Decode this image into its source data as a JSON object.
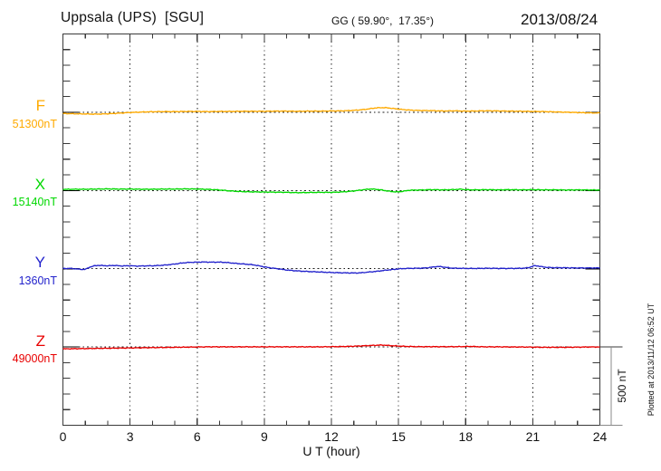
{
  "chart_data": {
    "type": "line",
    "title": "Uppsala (UPS)  [SGU]",
    "subtitle": "GG ( 59.90°,  17.35°)",
    "date": "2013/08/24",
    "xlabel": "U T (hour)",
    "xlim": [
      0,
      24
    ],
    "x_ticks": [
      0,
      3,
      6,
      9,
      12,
      15,
      18,
      21,
      24
    ],
    "x_minor_step_hours": 1,
    "grid": "dotted vertical lines at 3-hour ticks",
    "y_minor_tick_nT": 100,
    "scalebar": {
      "label": "500 nT",
      "nT": 500
    },
    "plotted_at": "Plotted at 2013/11/12 06:52 UT",
    "series": [
      {
        "name": "F",
        "baseline_label": "51300nT",
        "baseline_nT": 51300,
        "color": "#ffaa00",
        "points": [
          [
            0,
            -8
          ],
          [
            0.5,
            -10
          ],
          [
            1,
            -11
          ],
          [
            1.5,
            -12
          ],
          [
            2,
            -10
          ],
          [
            2.5,
            -6
          ],
          [
            3,
            -2
          ],
          [
            3.5,
            1
          ],
          [
            4,
            3
          ],
          [
            4.5,
            4
          ],
          [
            5,
            4
          ],
          [
            5.5,
            5
          ],
          [
            6,
            5
          ],
          [
            6.5,
            4
          ],
          [
            7,
            5
          ],
          [
            7.5,
            5
          ],
          [
            8,
            6
          ],
          [
            8.5,
            6
          ],
          [
            9,
            6
          ],
          [
            9.5,
            7
          ],
          [
            10,
            7
          ],
          [
            10.5,
            6
          ],
          [
            11,
            7
          ],
          [
            11.5,
            7
          ],
          [
            12,
            8
          ],
          [
            12.5,
            9
          ],
          [
            13,
            12
          ],
          [
            13.5,
            18
          ],
          [
            13.9,
            26
          ],
          [
            14.2,
            29
          ],
          [
            14.5,
            28
          ],
          [
            14.8,
            23
          ],
          [
            15.2,
            17
          ],
          [
            15.6,
            13
          ],
          [
            16,
            11
          ],
          [
            16.5,
            10
          ],
          [
            17,
            8
          ],
          [
            17.5,
            9
          ],
          [
            18,
            7
          ],
          [
            18.5,
            8
          ],
          [
            19,
            9
          ],
          [
            19.5,
            8
          ],
          [
            20,
            7
          ],
          [
            20.5,
            6
          ],
          [
            21,
            5
          ],
          [
            21.5,
            4
          ],
          [
            22,
            2
          ],
          [
            22.5,
            0
          ],
          [
            23,
            -2
          ],
          [
            23.5,
            -4
          ],
          [
            24,
            -5
          ]
        ]
      },
      {
        "name": "X",
        "baseline_label": "15140nT",
        "baseline_nT": 15140,
        "color": "#00d800",
        "points": [
          [
            0,
            7
          ],
          [
            0.5,
            8
          ],
          [
            1,
            8
          ],
          [
            1.5,
            9
          ],
          [
            2,
            10
          ],
          [
            2.5,
            9
          ],
          [
            3,
            9
          ],
          [
            3.5,
            8
          ],
          [
            4,
            8
          ],
          [
            4.5,
            9
          ],
          [
            5,
            9
          ],
          [
            5.5,
            10
          ],
          [
            6,
            9
          ],
          [
            6.5,
            7
          ],
          [
            7,
            3
          ],
          [
            7.5,
            -3
          ],
          [
            8,
            -7
          ],
          [
            8.5,
            -9
          ],
          [
            9,
            -10
          ],
          [
            9.5,
            -11
          ],
          [
            10,
            -12
          ],
          [
            10.5,
            -14
          ],
          [
            11,
            -13
          ],
          [
            11.5,
            -12
          ],
          [
            12,
            -12
          ],
          [
            12.5,
            -9
          ],
          [
            13,
            -3
          ],
          [
            13.5,
            6
          ],
          [
            13.8,
            9
          ],
          [
            14.2,
            4
          ],
          [
            14.5,
            -3
          ],
          [
            14.9,
            -9
          ],
          [
            15.2,
            -5
          ],
          [
            15.5,
            1
          ],
          [
            16,
            3
          ],
          [
            16.5,
            5
          ],
          [
            17,
            4
          ],
          [
            17.5,
            6
          ],
          [
            17.8,
            8
          ],
          [
            18,
            5
          ],
          [
            18.5,
            4
          ],
          [
            19,
            5
          ],
          [
            19.5,
            4
          ],
          [
            20,
            5
          ],
          [
            20.5,
            4
          ],
          [
            21,
            5
          ],
          [
            21.5,
            4
          ],
          [
            22,
            4
          ],
          [
            22.5,
            3
          ],
          [
            23,
            4
          ],
          [
            23.5,
            3
          ],
          [
            24,
            3
          ]
        ]
      },
      {
        "name": "Y",
        "baseline_label": "1360nT",
        "baseline_nT": 1360,
        "color": "#2222cc",
        "points": [
          [
            0,
            1
          ],
          [
            0.3,
            2
          ],
          [
            0.6,
            -1
          ],
          [
            0.8,
            -4
          ],
          [
            1,
            -3
          ],
          [
            1.2,
            10
          ],
          [
            1.4,
            18
          ],
          [
            1.6,
            21
          ],
          [
            2,
            19
          ],
          [
            2.3,
            21
          ],
          [
            2.6,
            18
          ],
          [
            3,
            19
          ],
          [
            3.3,
            17
          ],
          [
            3.6,
            18
          ],
          [
            4,
            19
          ],
          [
            4.3,
            21
          ],
          [
            4.6,
            24
          ],
          [
            5,
            30
          ],
          [
            5.3,
            36
          ],
          [
            5.6,
            40
          ],
          [
            6,
            42
          ],
          [
            6.3,
            43
          ],
          [
            6.6,
            42
          ],
          [
            7,
            42
          ],
          [
            7.3,
            40
          ],
          [
            7.6,
            36
          ],
          [
            8,
            31
          ],
          [
            8.5,
            25
          ],
          [
            9,
            12
          ],
          [
            9.3,
            5
          ],
          [
            9.6,
            0
          ],
          [
            10,
            -8
          ],
          [
            10.5,
            -14
          ],
          [
            11,
            -18
          ],
          [
            11.5,
            -21
          ],
          [
            12,
            -24
          ],
          [
            12.5,
            -26
          ],
          [
            13,
            -27
          ],
          [
            13.3,
            -26
          ],
          [
            13.6,
            -22
          ],
          [
            14,
            -17
          ],
          [
            14.4,
            -10
          ],
          [
            14.8,
            -4
          ],
          [
            15.1,
            0
          ],
          [
            15.4,
            2
          ],
          [
            15.8,
            3
          ],
          [
            16.2,
            5
          ],
          [
            16.5,
            10
          ],
          [
            16.8,
            14
          ],
          [
            17.1,
            9
          ],
          [
            17.4,
            4
          ],
          [
            17.7,
            3
          ],
          [
            18,
            2
          ],
          [
            18.5,
            2
          ],
          [
            19,
            3
          ],
          [
            19.5,
            2
          ],
          [
            20,
            2
          ],
          [
            20.5,
            3
          ],
          [
            20.8,
            7
          ],
          [
            21.1,
            19
          ],
          [
            21.4,
            13
          ],
          [
            21.7,
            8
          ],
          [
            22,
            7
          ],
          [
            22.5,
            6
          ],
          [
            23,
            5
          ],
          [
            23.5,
            5
          ],
          [
            24,
            5
          ]
        ]
      },
      {
        "name": "Z",
        "baseline_label": "49000nT",
        "baseline_nT": 49000,
        "color": "#e80000",
        "points": [
          [
            0,
            -12
          ],
          [
            0.5,
            -11
          ],
          [
            1,
            -10
          ],
          [
            1.5,
            -9
          ],
          [
            2,
            -8
          ],
          [
            2.5,
            -7
          ],
          [
            3,
            -6
          ],
          [
            3.5,
            -5
          ],
          [
            4,
            -4
          ],
          [
            4.5,
            -3
          ],
          [
            5,
            -2
          ],
          [
            5.5,
            -1
          ],
          [
            6,
            0
          ],
          [
            6.5,
            1
          ],
          [
            7,
            1
          ],
          [
            7.5,
            1
          ],
          [
            8,
            1
          ],
          [
            8.5,
            1
          ],
          [
            9,
            1
          ],
          [
            9.5,
            1
          ],
          [
            10,
            1
          ],
          [
            10.5,
            1
          ],
          [
            11,
            1
          ],
          [
            11.5,
            1
          ],
          [
            12,
            2
          ],
          [
            12.5,
            3
          ],
          [
            13,
            5
          ],
          [
            13.5,
            8
          ],
          [
            14,
            11
          ],
          [
            14.3,
            12
          ],
          [
            14.6,
            9
          ],
          [
            15,
            6
          ],
          [
            15.3,
            4
          ],
          [
            15.6,
            3
          ],
          [
            16,
            2
          ],
          [
            16.5,
            2
          ],
          [
            17,
            2
          ],
          [
            17.5,
            2
          ],
          [
            18,
            3
          ],
          [
            18.2,
            4
          ],
          [
            18.5,
            2
          ],
          [
            19,
            1
          ],
          [
            19.5,
            1
          ],
          [
            20,
            0
          ],
          [
            20.5,
            0
          ],
          [
            21,
            -1
          ],
          [
            21.5,
            -2
          ],
          [
            22,
            -2
          ],
          [
            22.5,
            -2
          ],
          [
            23,
            -1
          ],
          [
            23.5,
            0
          ],
          [
            24,
            0
          ]
        ]
      }
    ]
  }
}
